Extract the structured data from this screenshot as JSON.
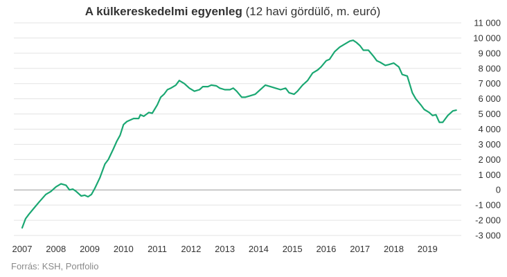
{
  "title": "A külkereskedelmi egyenleg",
  "subtitle": "(12 havi gördülő, m. euró)",
  "source": "Forrás: KSH, Portfolio",
  "colors": {
    "line": "#1aa772",
    "zero_line": "#999999",
    "grid": "#e3e3e3",
    "text": "#333333",
    "source": "#8a8a8a"
  },
  "chart_data": {
    "type": "line",
    "title": "A külkereskedelmi egyenleg (12 havi gördülő, m. euró)",
    "xlabel": "",
    "ylabel": "",
    "x_ticks": [
      "2007",
      "2008",
      "2009",
      "2010",
      "2011",
      "2012",
      "2013",
      "2014",
      "2015",
      "2016",
      "2017",
      "2018",
      "2019"
    ],
    "y_ticks": [
      "11 000",
      "10 000",
      "9 000",
      "8 000",
      "7 000",
      "6 000",
      "5 000",
      "4 000",
      "3 000",
      "2 000",
      "1 000",
      "0",
      "-1 000",
      "-2 000",
      "-3 000"
    ],
    "ylim": [
      -3000,
      11000
    ],
    "xlim": [
      2007.0,
      2020.0
    ],
    "grid": "horizontal",
    "y_axis_position": "right",
    "series": [
      {
        "x": [
          2007.0,
          2007.1,
          2007.2,
          2007.35,
          2007.5,
          2007.7,
          2007.85,
          2008.0,
          2008.15,
          2008.3,
          2008.4,
          2008.5,
          2008.6,
          2008.75,
          2008.85,
          2008.95,
          2009.05,
          2009.15,
          2009.3,
          2009.45,
          2009.55,
          2009.7,
          2009.8,
          2009.9,
          2010.0,
          2010.1,
          2010.3,
          2010.45,
          2010.5,
          2010.6,
          2010.75,
          2010.85,
          2011.0,
          2011.1,
          2011.2,
          2011.3,
          2011.4,
          2011.55,
          2011.65,
          2011.8,
          2011.95,
          2012.1,
          2012.25,
          2012.35,
          2012.5,
          2012.6,
          2012.75,
          2012.85,
          2013.0,
          2013.15,
          2013.25,
          2013.35,
          2013.5,
          2013.6,
          2013.75,
          2013.9,
          2014.05,
          2014.2,
          2014.35,
          2014.5,
          2014.65,
          2014.8,
          2014.9,
          2015.05,
          2015.15,
          2015.3,
          2015.45,
          2015.6,
          2015.75,
          2015.85,
          2016.0,
          2016.1,
          2016.25,
          2016.4,
          2016.55,
          2016.7,
          2016.8,
          2016.9,
          2017.0,
          2017.1,
          2017.25,
          2017.4,
          2017.5,
          2017.6,
          2017.75,
          2017.85,
          2018.0,
          2018.15,
          2018.25,
          2018.4,
          2018.55,
          2018.65,
          2018.8,
          2018.9,
          2019.05,
          2019.15,
          2019.25,
          2019.35,
          2019.45,
          2019.6,
          2019.75,
          2019.85
        ],
        "values": [
          -2500,
          -1900,
          -1600,
          -1200,
          -800,
          -300,
          -100,
          200,
          400,
          300,
          0,
          50,
          -100,
          -400,
          -350,
          -450,
          -300,
          100,
          800,
          1700,
          2000,
          2700,
          3200,
          3600,
          4300,
          4500,
          4700,
          4700,
          4950,
          4850,
          5100,
          5050,
          5600,
          6100,
          6300,
          6600,
          6700,
          6900,
          7200,
          7000,
          6700,
          6500,
          6600,
          6800,
          6800,
          6900,
          6850,
          6700,
          6600,
          6600,
          6700,
          6500,
          6100,
          6100,
          6200,
          6300,
          6600,
          6900,
          6800,
          6700,
          6600,
          6700,
          6400,
          6300,
          6500,
          6900,
          7200,
          7700,
          7900,
          8100,
          8500,
          8600,
          9100,
          9400,
          9600,
          9800,
          9850,
          9700,
          9500,
          9200,
          9200,
          8800,
          8500,
          8400,
          8200,
          8250,
          8350,
          8100,
          7600,
          7500,
          6400,
          6000,
          5600,
          5300,
          5100,
          4900,
          4950,
          4450,
          4450,
          4900,
          5200,
          5250
        ]
      }
    ]
  }
}
